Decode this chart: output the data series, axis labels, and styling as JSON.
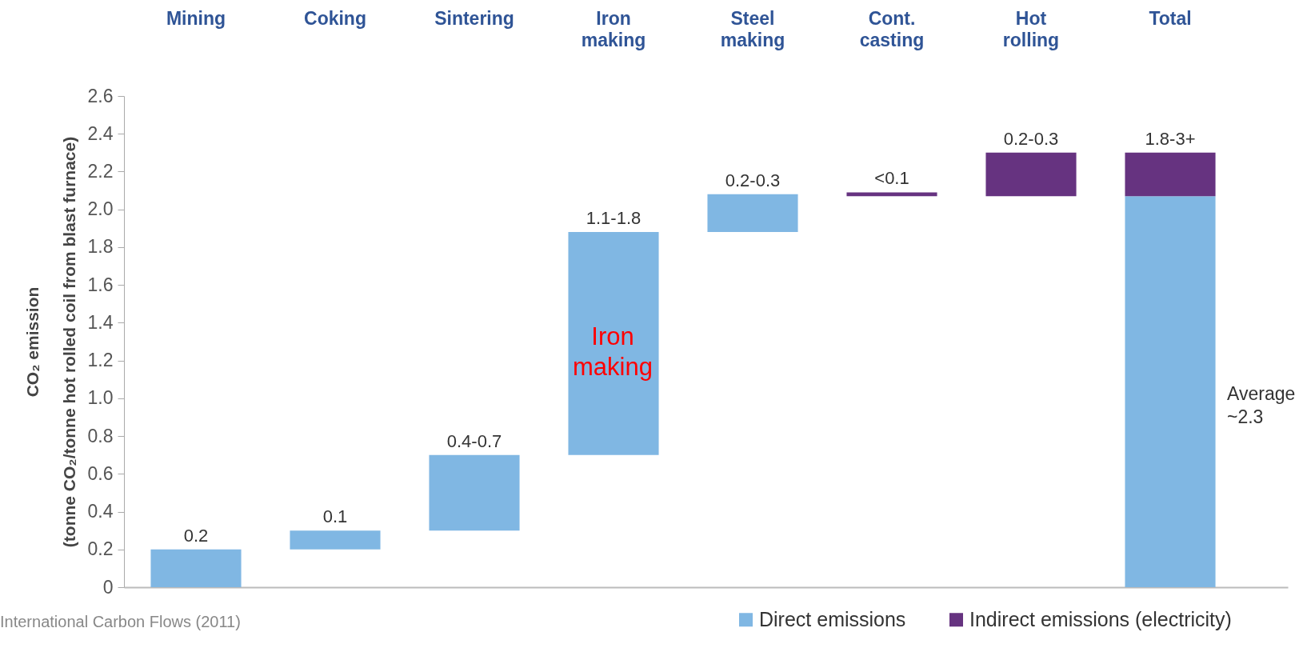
{
  "chart_data": {
    "type": "bar",
    "categories": [
      "Mining",
      "Coking",
      "Sintering",
      "Iron making",
      "Steel making",
      "Cont. casting",
      "Hot rolling",
      "Total"
    ],
    "ylabel": "CO₂ emission\n(tonne CO₂/tonne hot rolled coil from blast furnace)",
    "ylim": [
      0,
      2.6
    ],
    "yticks": [
      0,
      0.2,
      0.4,
      0.6,
      0.8,
      {
        "value": 1,
        "label": "1.0"
      },
      1.2,
      1.4,
      1.6,
      1.8,
      {
        "value": 2,
        "label": "2.0"
      },
      2.2,
      2.4,
      2.6
    ],
    "series": [
      {
        "name": "Direct emissions",
        "color": "#80b7e3",
        "values": [
          0.2,
          0.1,
          0.4,
          1.18,
          0.2,
          null,
          null,
          2.07
        ],
        "base": [
          0,
          0.2,
          0.3,
          0.7,
          1.88,
          null,
          null,
          0
        ],
        "value_labels": [
          "0.2",
          "0.1",
          "0.4-0.7",
          "1.1-1.8",
          "0.2-0.3",
          null,
          null,
          null
        ]
      },
      {
        "name": "Indirect emissions (electricity)",
        "color": "#663380",
        "values": [
          null,
          null,
          null,
          null,
          null,
          0.02,
          0.23,
          0.23
        ],
        "base": [
          null,
          null,
          null,
          null,
          null,
          2.07,
          2.07,
          2.07
        ],
        "value_labels": [
          null,
          null,
          null,
          null,
          null,
          "<0.1",
          "0.2-0.3",
          "1.8-3+"
        ]
      }
    ],
    "legend": "bottom right",
    "annotations": [
      "Iron making",
      "Average ~2.3",
      "International Carbon Flows (2011)"
    ]
  }
}
